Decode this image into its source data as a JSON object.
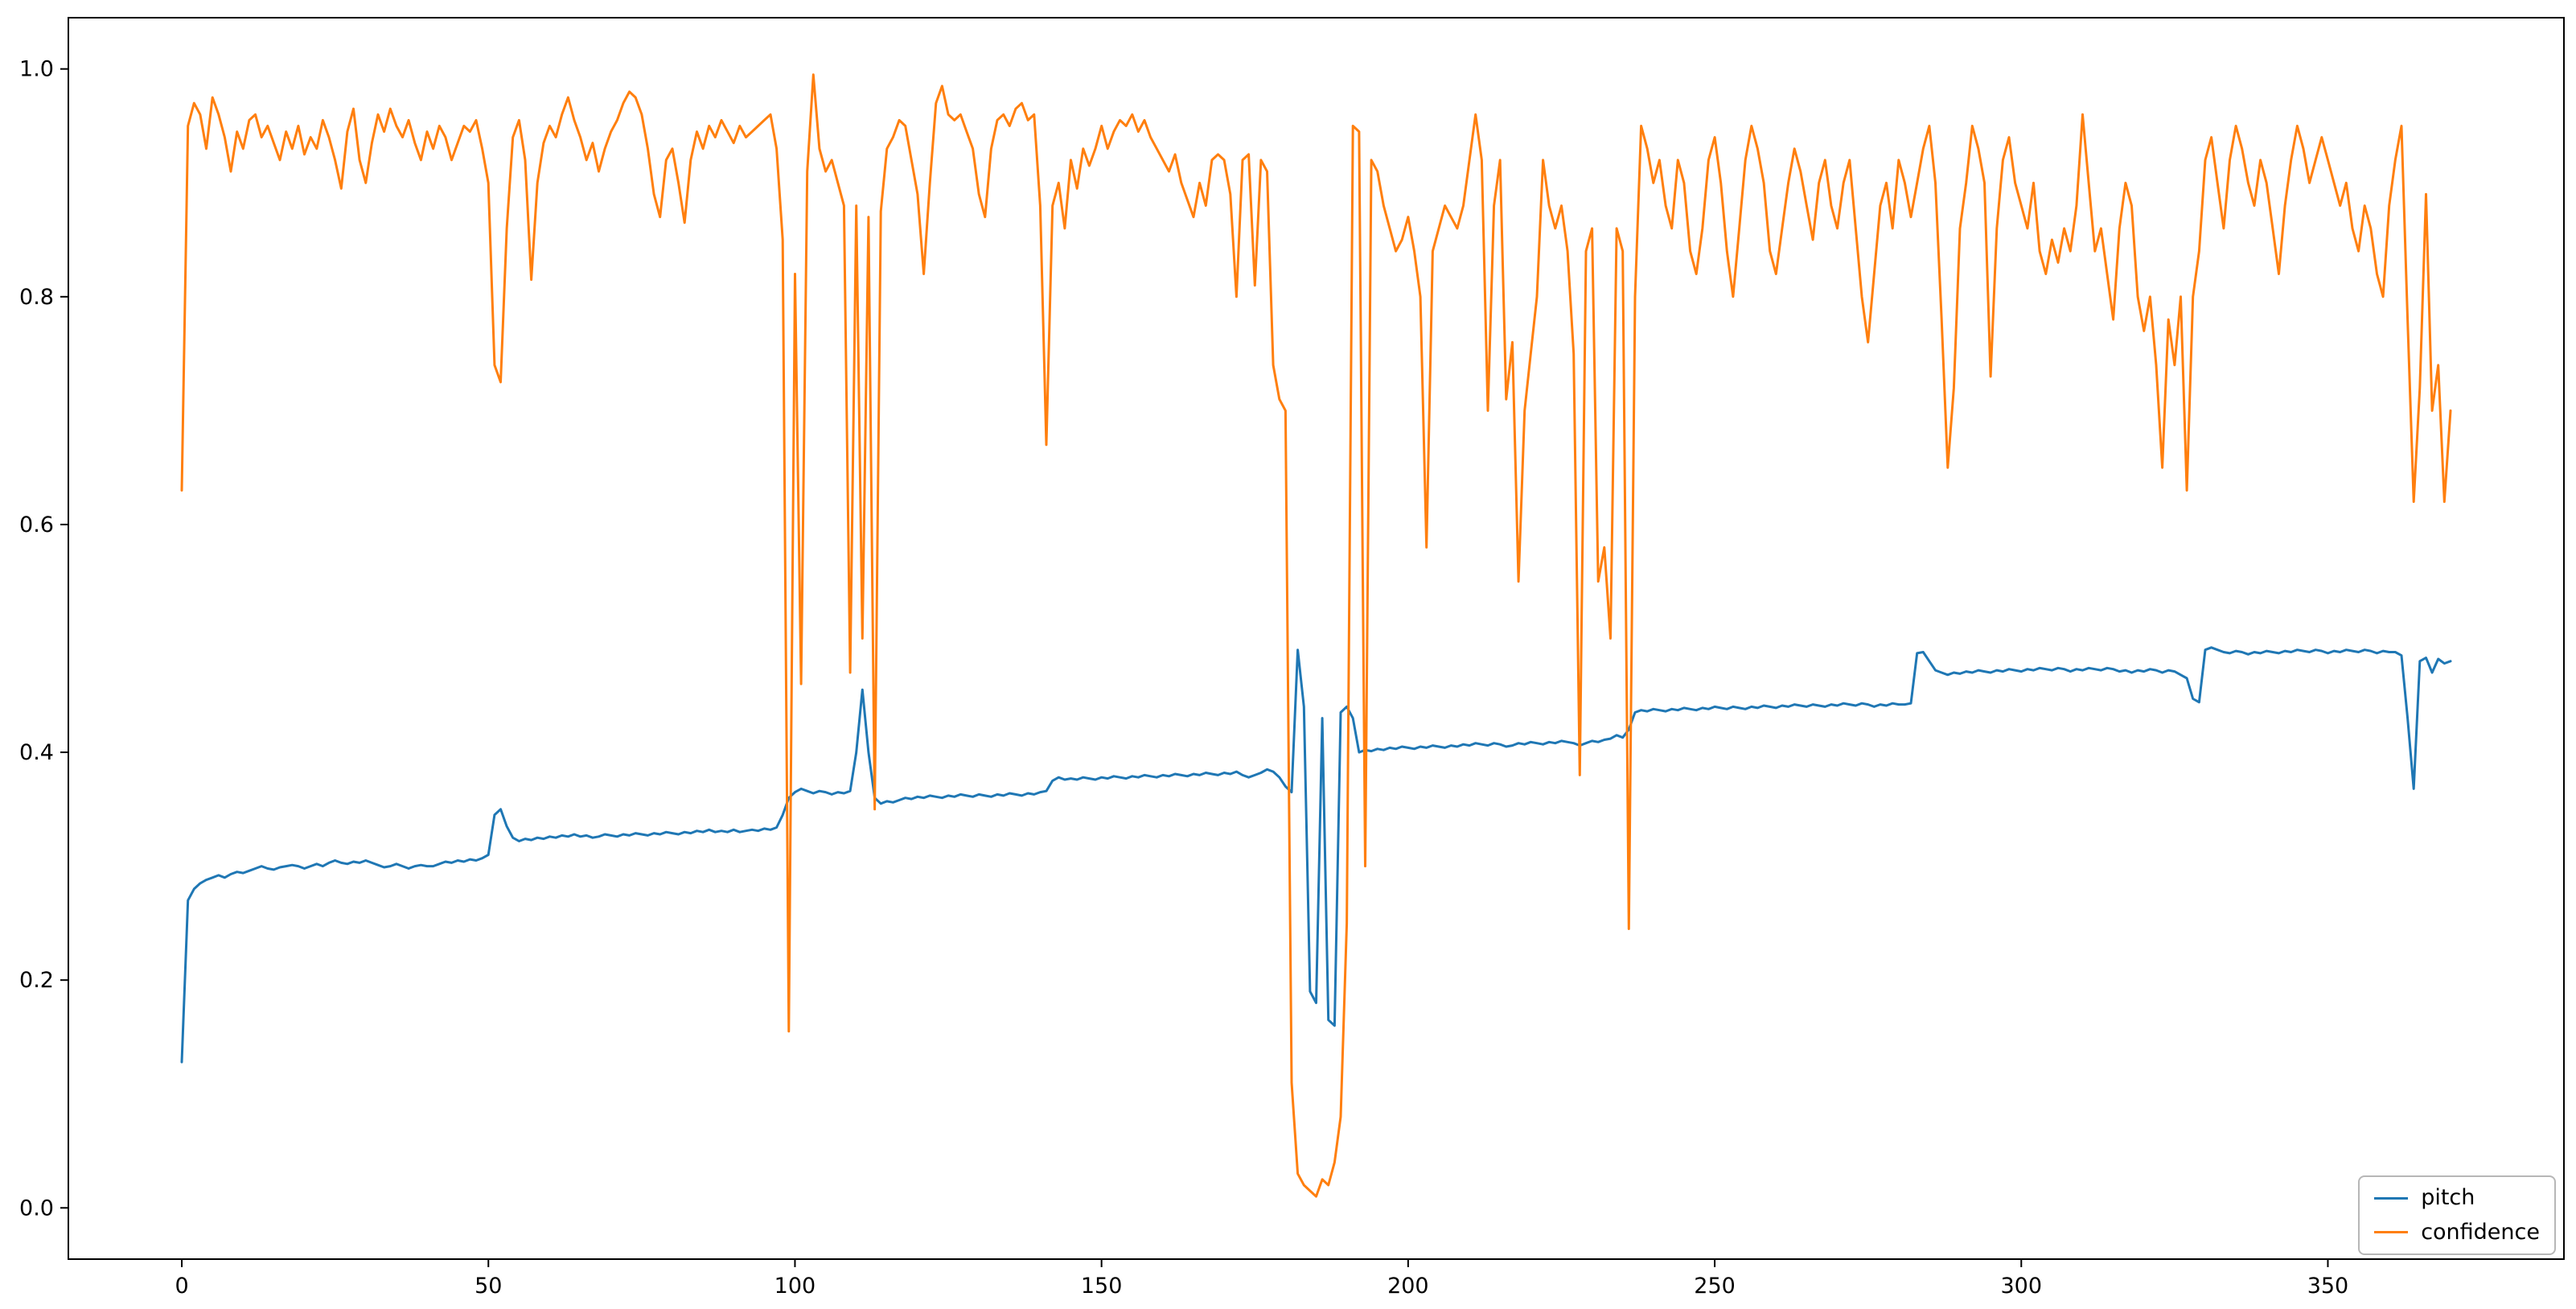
{
  "figure": {
    "background": "#ffffff",
    "spine_color": "#000000"
  },
  "chart_data": {
    "type": "line",
    "title": "",
    "xlabel": "",
    "ylabel": "",
    "xlim": [
      -18.5,
      388.5
    ],
    "ylim": [
      -0.045,
      1.045
    ],
    "xticks": [
      0,
      50,
      100,
      150,
      200,
      250,
      300,
      350
    ],
    "yticks": [
      0.0,
      0.2,
      0.4,
      0.6,
      0.8,
      1.0
    ],
    "grid": false,
    "legend_position": "lower right",
    "x_start": 0,
    "x_step": 1,
    "series": [
      {
        "name": "pitch",
        "color": "#1f77b4",
        "values": [
          0.128,
          0.27,
          0.28,
          0.285,
          0.288,
          0.29,
          0.292,
          0.29,
          0.293,
          0.295,
          0.294,
          0.296,
          0.298,
          0.3,
          0.298,
          0.297,
          0.299,
          0.3,
          0.301,
          0.3,
          0.298,
          0.3,
          0.302,
          0.3,
          0.303,
          0.305,
          0.303,
          0.302,
          0.304,
          0.303,
          0.305,
          0.303,
          0.301,
          0.299,
          0.3,
          0.302,
          0.3,
          0.298,
          0.3,
          0.301,
          0.3,
          0.3,
          0.302,
          0.304,
          0.303,
          0.305,
          0.304,
          0.306,
          0.305,
          0.307,
          0.31,
          0.345,
          0.35,
          0.335,
          0.325,
          0.322,
          0.324,
          0.323,
          0.325,
          0.324,
          0.326,
          0.325,
          0.327,
          0.326,
          0.328,
          0.326,
          0.327,
          0.325,
          0.326,
          0.328,
          0.327,
          0.326,
          0.328,
          0.327,
          0.329,
          0.328,
          0.327,
          0.329,
          0.328,
          0.33,
          0.329,
          0.328,
          0.33,
          0.329,
          0.331,
          0.33,
          0.332,
          0.33,
          0.331,
          0.33,
          0.332,
          0.33,
          0.331,
          0.332,
          0.331,
          0.333,
          0.332,
          0.334,
          0.345,
          0.36,
          0.365,
          0.368,
          0.366,
          0.364,
          0.366,
          0.365,
          0.363,
          0.365,
          0.364,
          0.366,
          0.4,
          0.455,
          0.4,
          0.36,
          0.355,
          0.357,
          0.356,
          0.358,
          0.36,
          0.359,
          0.361,
          0.36,
          0.362,
          0.361,
          0.36,
          0.362,
          0.361,
          0.363,
          0.362,
          0.361,
          0.363,
          0.362,
          0.361,
          0.363,
          0.362,
          0.364,
          0.363,
          0.362,
          0.364,
          0.363,
          0.365,
          0.366,
          0.375,
          0.378,
          0.376,
          0.377,
          0.376,
          0.378,
          0.377,
          0.376,
          0.378,
          0.377,
          0.379,
          0.378,
          0.377,
          0.379,
          0.378,
          0.38,
          0.379,
          0.378,
          0.38,
          0.379,
          0.381,
          0.38,
          0.379,
          0.381,
          0.38,
          0.382,
          0.381,
          0.38,
          0.382,
          0.381,
          0.383,
          0.38,
          0.378,
          0.38,
          0.382,
          0.385,
          0.383,
          0.378,
          0.37,
          0.365,
          0.49,
          0.44,
          0.19,
          0.18,
          0.43,
          0.165,
          0.16,
          0.435,
          0.44,
          0.43,
          0.4,
          0.402,
          0.401,
          0.403,
          0.402,
          0.404,
          0.403,
          0.405,
          0.404,
          0.403,
          0.405,
          0.404,
          0.406,
          0.405,
          0.404,
          0.406,
          0.405,
          0.407,
          0.406,
          0.408,
          0.407,
          0.406,
          0.408,
          0.407,
          0.405,
          0.406,
          0.408,
          0.407,
          0.409,
          0.408,
          0.407,
          0.409,
          0.408,
          0.41,
          0.409,
          0.408,
          0.406,
          0.408,
          0.41,
          0.409,
          0.411,
          0.412,
          0.415,
          0.413,
          0.42,
          0.435,
          0.437,
          0.436,
          0.438,
          0.437,
          0.436,
          0.438,
          0.437,
          0.439,
          0.438,
          0.437,
          0.439,
          0.438,
          0.44,
          0.439,
          0.438,
          0.44,
          0.439,
          0.438,
          0.44,
          0.439,
          0.441,
          0.44,
          0.439,
          0.441,
          0.44,
          0.442,
          0.441,
          0.44,
          0.442,
          0.441,
          0.44,
          0.442,
          0.441,
          0.443,
          0.442,
          0.441,
          0.443,
          0.442,
          0.44,
          0.442,
          0.441,
          0.443,
          0.442,
          0.442,
          0.443,
          0.487,
          0.488,
          0.48,
          0.472,
          0.47,
          0.468,
          0.47,
          0.469,
          0.471,
          0.47,
          0.472,
          0.471,
          0.47,
          0.472,
          0.471,
          0.473,
          0.472,
          0.471,
          0.473,
          0.472,
          0.474,
          0.473,
          0.472,
          0.474,
          0.473,
          0.471,
          0.473,
          0.472,
          0.474,
          0.473,
          0.472,
          0.474,
          0.473,
          0.471,
          0.472,
          0.47,
          0.472,
          0.471,
          0.473,
          0.472,
          0.47,
          0.472,
          0.471,
          0.468,
          0.465,
          0.447,
          0.444,
          0.49,
          0.492,
          0.49,
          0.488,
          0.487,
          0.489,
          0.488,
          0.486,
          0.488,
          0.487,
          0.489,
          0.488,
          0.487,
          0.489,
          0.488,
          0.49,
          0.489,
          0.488,
          0.49,
          0.489,
          0.487,
          0.489,
          0.488,
          0.49,
          0.489,
          0.488,
          0.49,
          0.489,
          0.487,
          0.489,
          0.488,
          0.488,
          0.485,
          0.43,
          0.368,
          0.48,
          0.483,
          0.47,
          0.482,
          0.478,
          0.48
        ]
      },
      {
        "name": "confidence",
        "color": "#ff7f0e",
        "values": [
          0.63,
          0.95,
          0.97,
          0.96,
          0.93,
          0.975,
          0.96,
          0.94,
          0.91,
          0.945,
          0.93,
          0.955,
          0.96,
          0.94,
          0.95,
          0.935,
          0.92,
          0.945,
          0.93,
          0.95,
          0.925,
          0.94,
          0.93,
          0.955,
          0.94,
          0.92,
          0.895,
          0.945,
          0.965,
          0.92,
          0.9,
          0.935,
          0.96,
          0.945,
          0.965,
          0.95,
          0.94,
          0.955,
          0.935,
          0.92,
          0.945,
          0.93,
          0.95,
          0.94,
          0.92,
          0.935,
          0.95,
          0.945,
          0.955,
          0.93,
          0.9,
          0.74,
          0.725,
          0.86,
          0.94,
          0.955,
          0.92,
          0.815,
          0.9,
          0.935,
          0.95,
          0.94,
          0.96,
          0.975,
          0.955,
          0.94,
          0.92,
          0.935,
          0.91,
          0.93,
          0.945,
          0.955,
          0.97,
          0.98,
          0.975,
          0.96,
          0.93,
          0.89,
          0.87,
          0.92,
          0.93,
          0.9,
          0.865,
          0.92,
          0.945,
          0.93,
          0.95,
          0.94,
          0.955,
          0.945,
          0.935,
          0.95,
          0.94,
          0.945,
          0.95,
          0.955,
          0.96,
          0.93,
          0.85,
          0.155,
          0.82,
          0.46,
          0.91,
          0.995,
          0.93,
          0.91,
          0.92,
          0.9,
          0.88,
          0.47,
          0.88,
          0.5,
          0.87,
          0.35,
          0.875,
          0.93,
          0.94,
          0.955,
          0.95,
          0.92,
          0.89,
          0.82,
          0.9,
          0.97,
          0.985,
          0.96,
          0.955,
          0.96,
          0.945,
          0.93,
          0.89,
          0.87,
          0.93,
          0.955,
          0.96,
          0.95,
          0.965,
          0.97,
          0.955,
          0.96,
          0.88,
          0.67,
          0.88,
          0.9,
          0.86,
          0.92,
          0.895,
          0.93,
          0.915,
          0.93,
          0.95,
          0.93,
          0.945,
          0.955,
          0.95,
          0.96,
          0.945,
          0.955,
          0.94,
          0.93,
          0.92,
          0.91,
          0.925,
          0.9,
          0.885,
          0.87,
          0.9,
          0.88,
          0.92,
          0.925,
          0.92,
          0.89,
          0.8,
          0.92,
          0.925,
          0.81,
          0.92,
          0.91,
          0.74,
          0.71,
          0.7,
          0.11,
          0.03,
          0.02,
          0.015,
          0.01,
          0.025,
          0.02,
          0.04,
          0.08,
          0.25,
          0.95,
          0.945,
          0.3,
          0.92,
          0.91,
          0.88,
          0.86,
          0.84,
          0.85,
          0.87,
          0.84,
          0.8,
          0.58,
          0.84,
          0.86,
          0.88,
          0.87,
          0.86,
          0.88,
          0.92,
          0.96,
          0.92,
          0.7,
          0.88,
          0.92,
          0.71,
          0.76,
          0.55,
          0.7,
          0.75,
          0.8,
          0.92,
          0.88,
          0.86,
          0.88,
          0.84,
          0.75,
          0.38,
          0.84,
          0.86,
          0.55,
          0.58,
          0.5,
          0.86,
          0.84,
          0.245,
          0.8,
          0.95,
          0.93,
          0.9,
          0.92,
          0.88,
          0.86,
          0.92,
          0.9,
          0.84,
          0.82,
          0.86,
          0.92,
          0.94,
          0.9,
          0.84,
          0.8,
          0.86,
          0.92,
          0.95,
          0.93,
          0.9,
          0.84,
          0.82,
          0.86,
          0.9,
          0.93,
          0.91,
          0.88,
          0.85,
          0.9,
          0.92,
          0.88,
          0.86,
          0.9,
          0.92,
          0.86,
          0.8,
          0.76,
          0.82,
          0.88,
          0.9,
          0.86,
          0.92,
          0.9,
          0.87,
          0.9,
          0.93,
          0.95,
          0.9,
          0.78,
          0.65,
          0.72,
          0.86,
          0.9,
          0.95,
          0.93,
          0.9,
          0.73,
          0.86,
          0.92,
          0.94,
          0.9,
          0.88,
          0.86,
          0.9,
          0.84,
          0.82,
          0.85,
          0.83,
          0.86,
          0.84,
          0.88,
          0.96,
          0.9,
          0.84,
          0.86,
          0.82,
          0.78,
          0.86,
          0.9,
          0.88,
          0.8,
          0.77,
          0.8,
          0.74,
          0.65,
          0.78,
          0.74,
          0.8,
          0.63,
          0.8,
          0.84,
          0.92,
          0.94,
          0.9,
          0.86,
          0.92,
          0.95,
          0.93,
          0.9,
          0.88,
          0.92,
          0.9,
          0.86,
          0.82,
          0.88,
          0.92,
          0.95,
          0.93,
          0.9,
          0.92,
          0.94,
          0.92,
          0.9,
          0.88,
          0.9,
          0.86,
          0.84,
          0.88,
          0.86,
          0.82,
          0.8,
          0.88,
          0.92,
          0.95,
          0.78,
          0.62,
          0.72,
          0.89,
          0.7,
          0.74,
          0.62,
          0.7
        ]
      }
    ]
  },
  "legend": {
    "items": [
      {
        "label": "pitch"
      },
      {
        "label": "confidence"
      }
    ]
  }
}
